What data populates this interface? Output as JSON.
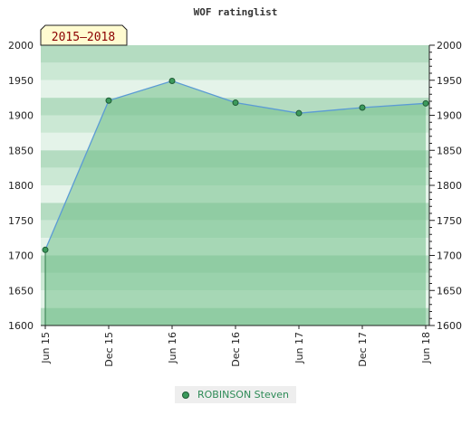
{
  "chart_data": {
    "type": "area",
    "title": "WOF ratinglist",
    "period_label": "2015–2018",
    "categories": [
      "Jun 15",
      "Dec 15",
      "Jun 16",
      "Dec 16",
      "Jun 17",
      "Dec 17",
      "Jun 18"
    ],
    "series": [
      {
        "name": "ROBINSON Steven",
        "values": [
          1708,
          1921,
          1949,
          1918,
          1903,
          1911,
          1917
        ]
      }
    ],
    "ylim": [
      1600,
      2000
    ],
    "yticks": [
      1600,
      1650,
      1700,
      1750,
      1800,
      1850,
      1900,
      1950,
      2000
    ],
    "xlabel": "",
    "ylabel": "",
    "grid": true,
    "legend": "bottom",
    "colors": {
      "band_dark": "#b4dcc1",
      "band_light": "#cbe8d4",
      "band_lightest": "#e4f3e9",
      "fill": "#73bf8a",
      "line": "#5b9bd5",
      "marker": "#3c9a5c",
      "marker_stroke": "#1e5a35",
      "badge_bg": "#fffbd0"
    }
  }
}
